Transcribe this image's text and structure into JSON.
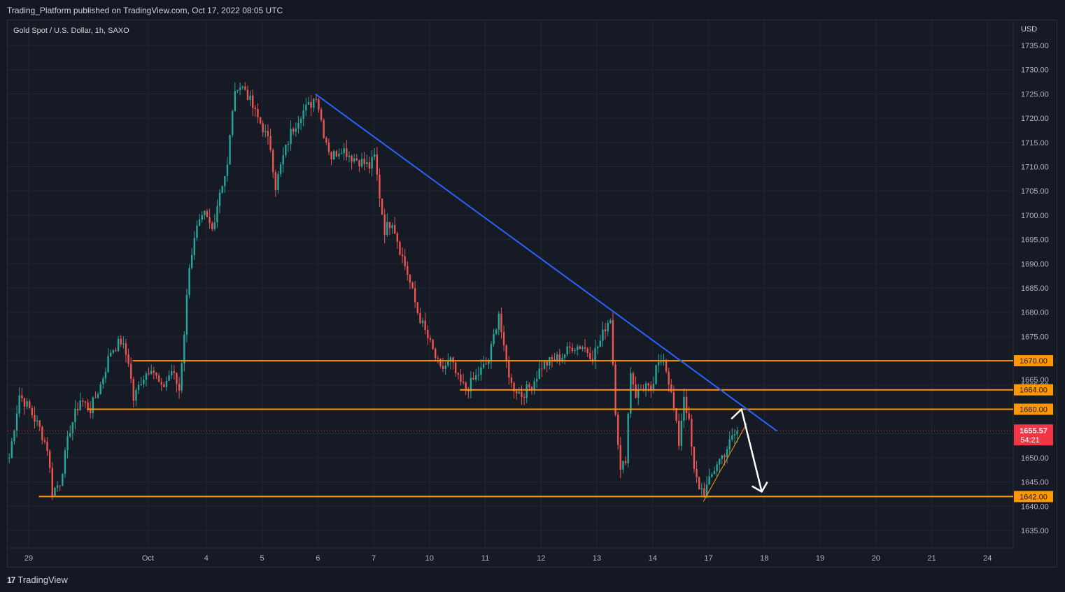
{
  "header": {
    "published_line": "Trading_Platform published on TradingView.com, Oct 17, 2022 08:05 UTC"
  },
  "footer": {
    "logo_mark": "17",
    "logo_text": "TradingView"
  },
  "colors": {
    "background": "#161a25",
    "grid": "#232734",
    "text": "#b2b5be",
    "up": "#26a69a",
    "down": "#ef5350",
    "support_lines": "#ff9800",
    "trendline": "#2962ff",
    "projection_arrow": "#ffffff",
    "current_price_badge": "#f23645"
  },
  "chart_data": {
    "type": "candlestick",
    "symbol_label": "Gold Spot / U.S. Dollar, 1h, SAXO",
    "currency_label": "USD",
    "ylim": [
      1631,
      1740
    ],
    "y_ticks": [
      1635,
      1640,
      1645,
      1650,
      1655,
      1660,
      1665,
      1670,
      1675,
      1680,
      1685,
      1690,
      1695,
      1700,
      1705,
      1710,
      1715,
      1720,
      1725,
      1730,
      1735
    ],
    "y_tick_labels": [
      "1635.00",
      "1640.00",
      "1645.00",
      "1650.00",
      "1655.00",
      "1660.00",
      "1665.00",
      "1670.00",
      "1675.00",
      "1680.00",
      "1685.00",
      "1690.00",
      "1695.00",
      "1700.00",
      "1705.00",
      "1710.00",
      "1715.00",
      "1720.00",
      "1725.00",
      "1730.00",
      "1735.00"
    ],
    "x_labels": [
      "29",
      "Oct",
      "4",
      "5",
      "6",
      "7",
      "10",
      "11",
      "12",
      "13",
      "14",
      "17",
      "18",
      "19",
      "20",
      "21",
      "24"
    ],
    "x_label_bar_index": [
      8,
      55,
      78,
      100,
      122,
      144,
      166,
      188,
      210,
      232,
      254,
      276,
      298,
      320,
      342,
      364,
      386
    ],
    "total_bar_slots": 390,
    "price_path": [
      [
        0,
        1650
      ],
      [
        4,
        1663
      ],
      [
        8,
        1660
      ],
      [
        12,
        1656
      ],
      [
        15,
        1652
      ],
      [
        17,
        1643
      ],
      [
        20,
        1645
      ],
      [
        24,
        1656
      ],
      [
        28,
        1662
      ],
      [
        32,
        1660
      ],
      [
        36,
        1665
      ],
      [
        40,
        1672
      ],
      [
        44,
        1674
      ],
      [
        47,
        1670
      ],
      [
        49,
        1662
      ],
      [
        52,
        1666
      ],
      [
        56,
        1669
      ],
      [
        60,
        1664
      ],
      [
        64,
        1668
      ],
      [
        67,
        1664
      ],
      [
        69,
        1676
      ],
      [
        71,
        1690
      ],
      [
        74,
        1697
      ],
      [
        77,
        1700
      ],
      [
        80,
        1697
      ],
      [
        83,
        1705
      ],
      [
        86,
        1710
      ],
      [
        88,
        1722
      ],
      [
        90,
        1727
      ],
      [
        93,
        1726
      ],
      [
        97,
        1721
      ],
      [
        100,
        1718
      ],
      [
        103,
        1714
      ],
      [
        105,
        1706
      ],
      [
        108,
        1712
      ],
      [
        111,
        1717
      ],
      [
        115,
        1721
      ],
      [
        119,
        1723
      ],
      [
        121,
        1725
      ],
      [
        124,
        1717
      ],
      [
        127,
        1712
      ],
      [
        131,
        1714
      ],
      [
        135,
        1712
      ],
      [
        139,
        1711
      ],
      [
        142,
        1710
      ],
      [
        144,
        1712
      ],
      [
        146,
        1704
      ],
      [
        148,
        1697
      ],
      [
        151,
        1699
      ],
      [
        154,
        1693
      ],
      [
        157,
        1688
      ],
      [
        161,
        1680
      ],
      [
        164,
        1676
      ],
      [
        167,
        1672
      ],
      [
        170,
        1668
      ],
      [
        174,
        1670
      ],
      [
        177,
        1666
      ],
      [
        180,
        1664
      ],
      [
        183,
        1666
      ],
      [
        186,
        1668
      ],
      [
        189,
        1670
      ],
      [
        191,
        1675
      ],
      [
        193,
        1680
      ],
      [
        195,
        1672
      ],
      [
        198,
        1665
      ],
      [
        202,
        1663
      ],
      [
        206,
        1665
      ],
      [
        210,
        1669
      ],
      [
        214,
        1670
      ],
      [
        218,
        1671
      ],
      [
        222,
        1673
      ],
      [
        226,
        1673
      ],
      [
        230,
        1671
      ],
      [
        233,
        1674
      ],
      [
        235,
        1677
      ],
      [
        237,
        1679
      ],
      [
        239,
        1660
      ],
      [
        241,
        1647
      ],
      [
        243,
        1650
      ],
      [
        245,
        1668
      ],
      [
        247,
        1663
      ],
      [
        251,
        1665
      ],
      [
        253,
        1663
      ],
      [
        255,
        1668
      ],
      [
        258,
        1671
      ],
      [
        260,
        1666
      ],
      [
        262,
        1660
      ],
      [
        264,
        1653
      ],
      [
        266,
        1663
      ],
      [
        268,
        1657
      ],
      [
        270,
        1647
      ],
      [
        272,
        1644
      ],
      [
        274,
        1643
      ],
      [
        276,
        1645
      ],
      [
        279,
        1649
      ],
      [
        282,
        1651
      ],
      [
        285,
        1654
      ],
      [
        287,
        1655.57
      ]
    ],
    "support_resistance_lines": [
      {
        "label": "1670.00",
        "price": 1670,
        "from_bar": 49
      },
      {
        "label": "1664.00",
        "price": 1664,
        "from_bar": 178
      },
      {
        "label": "1660.00",
        "price": 1660,
        "from_bar": 31
      },
      {
        "label": "1642.00",
        "price": 1642,
        "from_bar": 12
      }
    ],
    "faint_tick_label": "1665.00",
    "trendline": {
      "from": [
        121,
        1725
      ],
      "to": [
        303,
        1655.5
      ]
    },
    "rising_support_line": {
      "from": [
        274,
        1641
      ],
      "to": [
        291,
        1657
      ]
    },
    "projection_arrow": [
      [
        285,
        1658
      ],
      [
        289,
        1660
      ],
      [
        297,
        1643
      ]
    ],
    "current_price": {
      "value": 1655.57,
      "label": "1655.57",
      "countdown": "54:21"
    }
  }
}
